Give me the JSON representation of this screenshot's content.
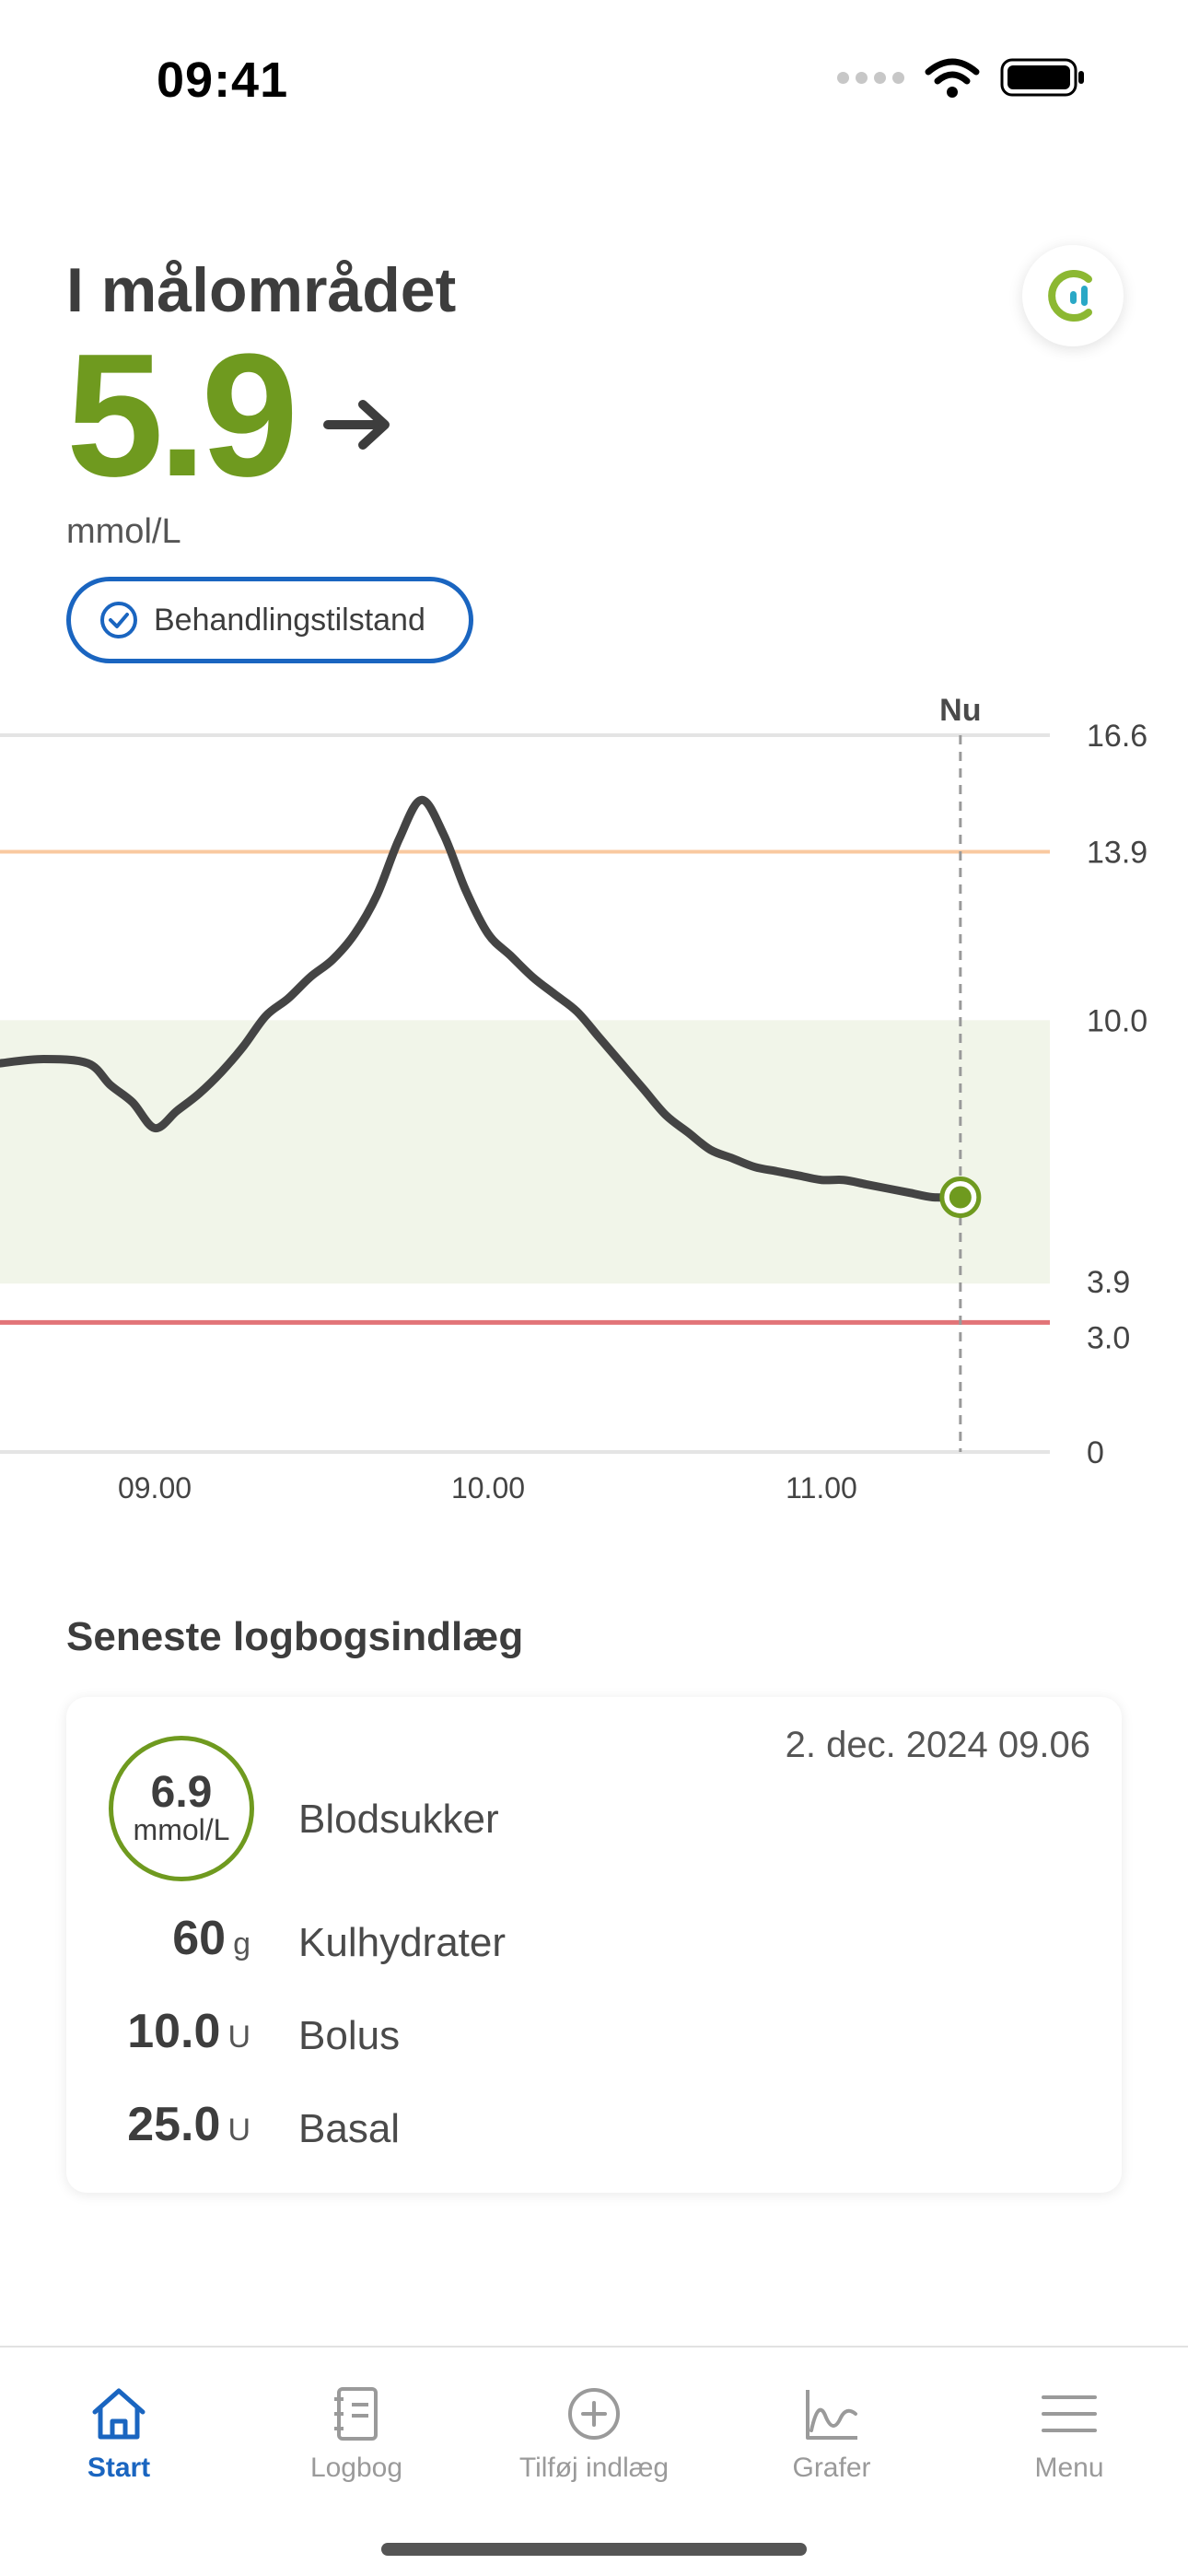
{
  "status_bar": {
    "time": "09:41"
  },
  "header": {
    "state_title": "I målområdet",
    "glucose_value": "5.9",
    "unit": "mmol/L",
    "treatment_badge": "Behandlingstilstand"
  },
  "colors": {
    "accent_green": "#6f9a1f",
    "primary_blue": "#1a65c0",
    "high_line": "#f9c9a0",
    "low_line": "#e27478",
    "target_band": "#f1f5e9"
  },
  "chart_data": {
    "type": "line",
    "now_label": "Nu",
    "x_ticks": [
      "09.00",
      "10.00",
      "11.00"
    ],
    "y_ticks": [
      "16.6",
      "13.9",
      "10.0",
      "3.9",
      "3.0",
      "0"
    ],
    "ylim": [
      0,
      16.6
    ],
    "target_range": [
      3.9,
      10.0
    ],
    "high_threshold": 13.9,
    "low_threshold": 3.0,
    "series": [
      {
        "x": [
          "08.32",
          "08.40",
          "08.48",
          "08.52",
          "08.56",
          "09.00",
          "09.04",
          "09.08",
          "09.12",
          "09.16",
          "09.20",
          "09.24",
          "09.28",
          "09.32",
          "09.36",
          "09.40",
          "09.44",
          "09.48",
          "09.52",
          "09.56",
          "10.00",
          "10.04",
          "10.08",
          "10.12",
          "10.16",
          "10.20",
          "10.24",
          "10.28",
          "10.32",
          "10.36",
          "10.40",
          "10.44",
          "10.48",
          "10.52",
          "10.56",
          "11.00",
          "11.04",
          "11.08",
          "11.12",
          "11.16",
          "11.20",
          "11.25"
        ],
        "values": [
          9.0,
          9.1,
          9.0,
          8.5,
          8.1,
          7.5,
          7.9,
          8.3,
          8.8,
          9.4,
          10.1,
          10.5,
          11.0,
          11.4,
          12.0,
          12.9,
          14.2,
          15.1,
          14.3,
          13.0,
          12.0,
          11.5,
          11.0,
          10.6,
          10.2,
          9.6,
          9.0,
          8.4,
          7.8,
          7.4,
          7.0,
          6.8,
          6.6,
          6.5,
          6.4,
          6.3,
          6.3,
          6.2,
          6.1,
          6.0,
          5.9,
          5.9
        ]
      }
    ],
    "current_value": 5.9
  },
  "logbook": {
    "section_title": "Seneste logbogsindlæg",
    "date": "2. dec. 2024 09.06",
    "blood_sugar": {
      "value": "6.9",
      "unit": "mmol/L",
      "label": "Blodsukker"
    },
    "entries": [
      {
        "value": "60",
        "unit": "g",
        "label": "Kulhydrater"
      },
      {
        "value": "10.0",
        "unit": "U",
        "label": "Bolus"
      },
      {
        "value": "25.0",
        "unit": "U",
        "label": "Basal"
      }
    ]
  },
  "tabbar": {
    "tabs": [
      {
        "label": "Start",
        "icon": "home-icon",
        "active": true
      },
      {
        "label": "Logbog",
        "icon": "notebook-icon",
        "active": false
      },
      {
        "label": "Tilføj indlæg",
        "icon": "plus-circle-icon",
        "active": false
      },
      {
        "label": "Grafer",
        "icon": "graph-icon",
        "active": false
      },
      {
        "label": "Menu",
        "icon": "hamburger-icon",
        "active": false
      }
    ]
  }
}
